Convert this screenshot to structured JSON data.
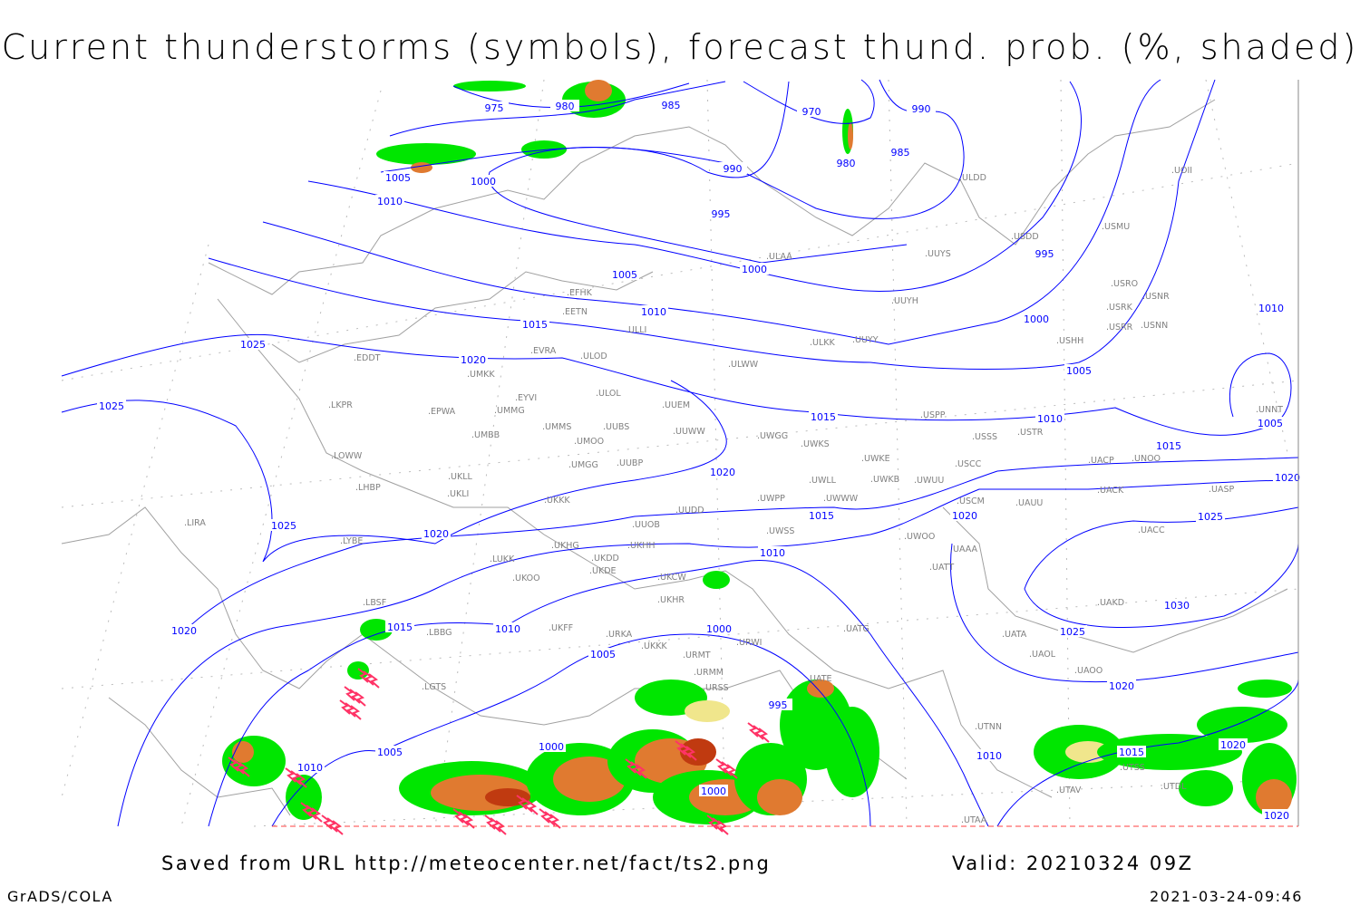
{
  "title": "Current thunderstorms (symbols), forecast thund. prob. (%, shaded)",
  "footer": {
    "saved_from": "Saved from URL http://meteocenter.net/fact/ts2.png",
    "valid": "Valid: 20210324 09Z",
    "software": "GrADS/COLA",
    "timestamp": "2021-03-24-09:46"
  },
  "colors": {
    "isobar": "#0000ff",
    "coastline": "#a0a0a0",
    "station_label": "#808080",
    "prob_low": "#00e600",
    "prob_mid": "#f0e68c",
    "prob_high": "#e07a30",
    "prob_max": "#c03a10",
    "storm_symbol": "#ff3366"
  },
  "isobar_labels": [
    "975",
    "980",
    "985",
    "970",
    "990",
    "980",
    "985",
    "990",
    "1005",
    "1000",
    "1010",
    "995",
    "1000",
    "995",
    "1005",
    "1010",
    "1015",
    "1000",
    "1010",
    "1025",
    "1020",
    "1005",
    "1025",
    "1015",
    "1010",
    "1005",
    "1015",
    "1020",
    "1020",
    "1015",
    "1020",
    "1025",
    "1025",
    "1020",
    "1010",
    "1030",
    "1015",
    "1020",
    "1010",
    "1000",
    "1005",
    "1025",
    "995",
    "1020",
    "1005",
    "1000",
    "1010",
    "1010",
    "1015",
    "1020",
    "1000",
    "1020"
  ],
  "stations": [
    "EFHK",
    "EETN",
    "ULLI",
    "EVRA",
    "ULOD",
    "ULWW",
    "EDDT",
    "UMKK",
    "LKPR",
    "EPWA",
    "EYVI",
    "UMMG",
    "ULOL",
    "UUEM",
    "UMMS",
    "UMOO",
    "UUBS",
    "UUWW",
    "UMBB",
    "LOWW",
    "UKLL",
    "UMGG",
    "UUBP",
    "LHBP",
    "UKLI",
    "UKKK",
    "UUDD",
    "UUOB",
    "LYBE",
    "UKHG",
    "UKDD",
    "UKHH",
    "LUKK",
    "UKOO",
    "UKDE",
    "UKCW",
    "LBSF",
    "UKFF",
    "UKHR",
    "URKA",
    "UKKK",
    "URMT",
    "URWI",
    "LBBG",
    "URMM",
    "URSS",
    "LIRA",
    "LGTS",
    "ULDD",
    "UOII",
    "USMU",
    "USDD",
    "UUYS",
    "ULAA",
    "UUYH",
    "USRO",
    "USRK",
    "USNR",
    "USRR",
    "USNN",
    "ULKK",
    "UUYY",
    "USHH",
    "USPP",
    "USTR",
    "UWGG",
    "UWKS",
    "USSS",
    "UNOO",
    "UNNT",
    "UWKE",
    "UWKB",
    "UWUU",
    "USCC",
    "UACP",
    "UWLL",
    "UWWW",
    "UWPP",
    "USCM",
    "UAUU",
    "UACK",
    "UASP",
    "UWSS",
    "UWOO",
    "UATT",
    "UAAA",
    "UACC",
    "UAKD",
    "UATG",
    "UATA",
    "UAOL",
    "UAOO",
    "UATE",
    "UTNN",
    "UTAA",
    "UTAV",
    "UTSS",
    "UTDL"
  ]
}
